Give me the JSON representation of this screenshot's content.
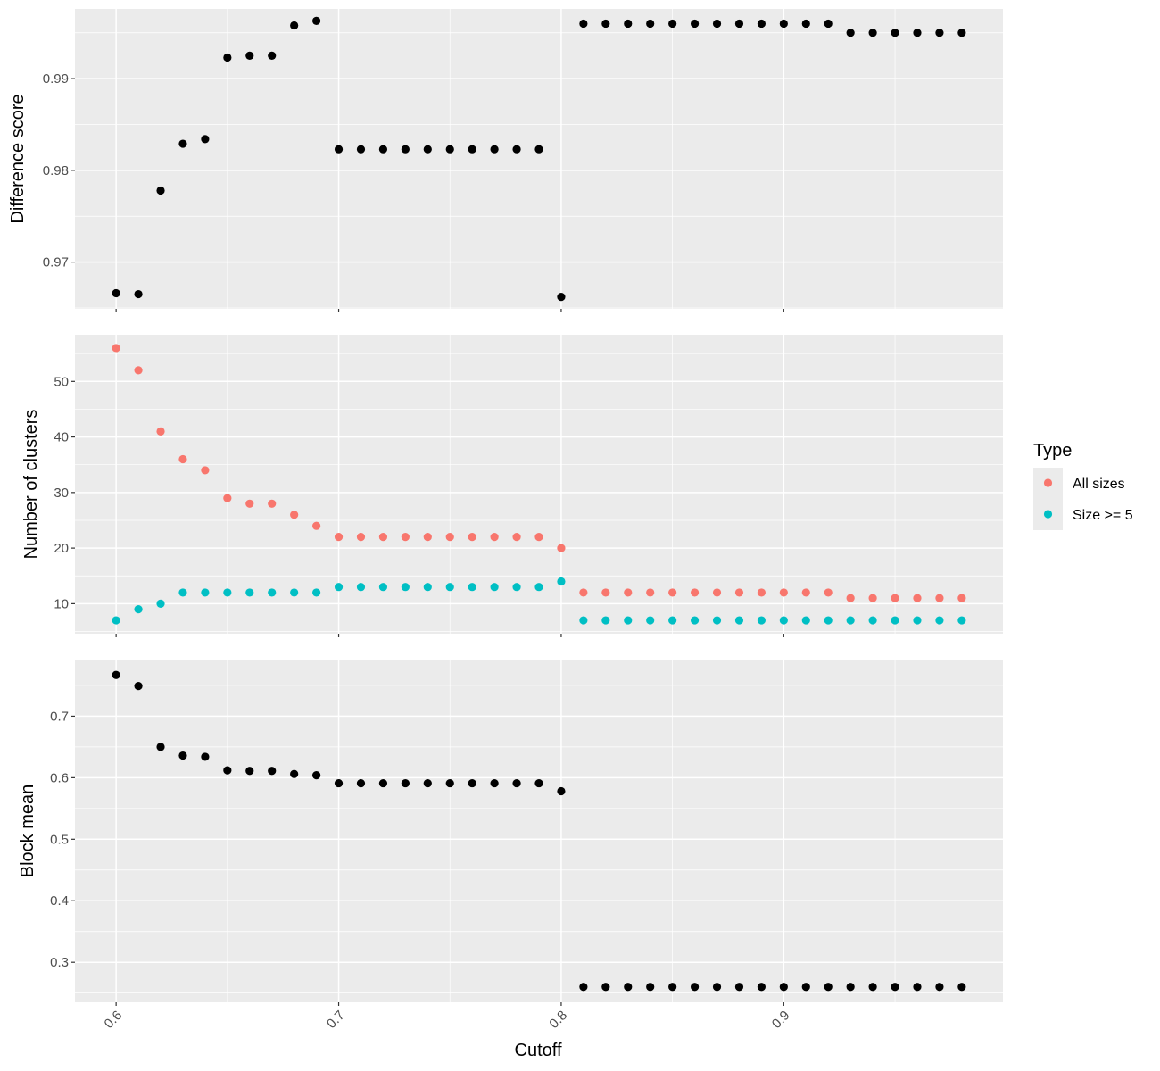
{
  "chart_data": {
    "type": "scatter",
    "xlabel": "Cutoff",
    "x_ticks": [
      "0.6",
      "0.7",
      "0.8",
      "0.9"
    ],
    "x_tick_values": [
      0.6,
      0.7,
      0.8,
      0.9
    ],
    "xlim": [
      0.5815,
      0.9985
    ],
    "grid": true,
    "legend": {
      "title": "Type",
      "placement": "right",
      "entries": [
        {
          "label": "All sizes",
          "color": "#F8766D"
        },
        {
          "label": "Size >= 5",
          "color": "#00BFC4"
        }
      ]
    },
    "panels": [
      {
        "ylabel": "Difference score",
        "ylim": [
          0.9649,
          0.9976
        ],
        "y_ticks": [
          "0.97",
          "0.98",
          "0.99"
        ],
        "y_tick_values": [
          0.97,
          0.98,
          0.99
        ],
        "series": [
          {
            "color": "#000000",
            "x": [
              0.6,
              0.61,
              0.62,
              0.63,
              0.64,
              0.65,
              0.66,
              0.67,
              0.68,
              0.69,
              0.7,
              0.71,
              0.72,
              0.73,
              0.74,
              0.75,
              0.76,
              0.77,
              0.78,
              0.79,
              0.8,
              0.81,
              0.82,
              0.83,
              0.84,
              0.85,
              0.86,
              0.87,
              0.88,
              0.89,
              0.9,
              0.91,
              0.92,
              0.93,
              0.94,
              0.95,
              0.96,
              0.97,
              0.98
            ],
            "y": [
              0.9666,
              0.9665,
              0.9778,
              0.9829,
              0.9834,
              0.9923,
              0.9925,
              0.9925,
              0.9958,
              0.9963,
              0.9823,
              0.9823,
              0.9823,
              0.9823,
              0.9823,
              0.9823,
              0.9823,
              0.9823,
              0.9823,
              0.9823,
              0.9662,
              0.996,
              0.996,
              0.996,
              0.996,
              0.996,
              0.996,
              0.996,
              0.996,
              0.996,
              0.996,
              0.996,
              0.996,
              0.995,
              0.995,
              0.995,
              0.995,
              0.995,
              0.995
            ]
          }
        ]
      },
      {
        "ylabel": "Number of clusters",
        "ylim": [
          4.6,
          58.4
        ],
        "y_ticks": [
          "10",
          "20",
          "30",
          "40",
          "50"
        ],
        "y_tick_values": [
          10,
          20,
          30,
          40,
          50
        ],
        "series": [
          {
            "name": "All sizes",
            "color": "#F8766D",
            "x": [
              0.6,
              0.61,
              0.62,
              0.63,
              0.64,
              0.65,
              0.66,
              0.67,
              0.68,
              0.69,
              0.7,
              0.71,
              0.72,
              0.73,
              0.74,
              0.75,
              0.76,
              0.77,
              0.78,
              0.79,
              0.8,
              0.81,
              0.82,
              0.83,
              0.84,
              0.85,
              0.86,
              0.87,
              0.88,
              0.89,
              0.9,
              0.91,
              0.92,
              0.93,
              0.94,
              0.95,
              0.96,
              0.97,
              0.98
            ],
            "y": [
              56,
              52,
              41,
              36,
              34,
              29,
              28,
              28,
              26,
              24,
              22,
              22,
              22,
              22,
              22,
              22,
              22,
              22,
              22,
              22,
              20,
              12,
              12,
              12,
              12,
              12,
              12,
              12,
              12,
              12,
              12,
              12,
              12,
              11,
              11,
              11,
              11,
              11,
              11
            ]
          },
          {
            "name": "Size >= 5",
            "color": "#00BFC4",
            "x": [
              0.6,
              0.61,
              0.62,
              0.63,
              0.64,
              0.65,
              0.66,
              0.67,
              0.68,
              0.69,
              0.7,
              0.71,
              0.72,
              0.73,
              0.74,
              0.75,
              0.76,
              0.77,
              0.78,
              0.79,
              0.8,
              0.81,
              0.82,
              0.83,
              0.84,
              0.85,
              0.86,
              0.87,
              0.88,
              0.89,
              0.9,
              0.91,
              0.92,
              0.93,
              0.94,
              0.95,
              0.96,
              0.97,
              0.98
            ],
            "y": [
              7,
              9,
              10,
              12,
              12,
              12,
              12,
              12,
              12,
              12,
              13,
              13,
              13,
              13,
              13,
              13,
              13,
              13,
              13,
              13,
              14,
              7,
              7,
              7,
              7,
              7,
              7,
              7,
              7,
              7,
              7,
              7,
              7,
              7,
              7,
              7,
              7,
              7,
              7
            ]
          }
        ]
      },
      {
        "ylabel": "Block mean",
        "ylim": [
          0.235,
          0.792
        ],
        "y_ticks": [
          "0.3",
          "0.4",
          "0.5",
          "0.6",
          "0.7"
        ],
        "y_tick_values": [
          0.3,
          0.4,
          0.5,
          0.6,
          0.7
        ],
        "series": [
          {
            "color": "#000000",
            "x": [
              0.6,
              0.61,
              0.62,
              0.63,
              0.64,
              0.65,
              0.66,
              0.67,
              0.68,
              0.69,
              0.7,
              0.71,
              0.72,
              0.73,
              0.74,
              0.75,
              0.76,
              0.77,
              0.78,
              0.79,
              0.8,
              0.81,
              0.82,
              0.83,
              0.84,
              0.85,
              0.86,
              0.87,
              0.88,
              0.89,
              0.9,
              0.91,
              0.92,
              0.93,
              0.94,
              0.95,
              0.96,
              0.97,
              0.98
            ],
            "y": [
              0.767,
              0.749,
              0.65,
              0.636,
              0.634,
              0.612,
              0.611,
              0.611,
              0.606,
              0.604,
              0.591,
              0.591,
              0.591,
              0.591,
              0.591,
              0.591,
              0.591,
              0.591,
              0.591,
              0.591,
              0.578,
              0.26,
              0.26,
              0.26,
              0.26,
              0.26,
              0.26,
              0.26,
              0.26,
              0.26,
              0.26,
              0.26,
              0.26,
              0.26,
              0.26,
              0.26,
              0.26,
              0.26,
              0.26
            ]
          }
        ]
      }
    ]
  }
}
